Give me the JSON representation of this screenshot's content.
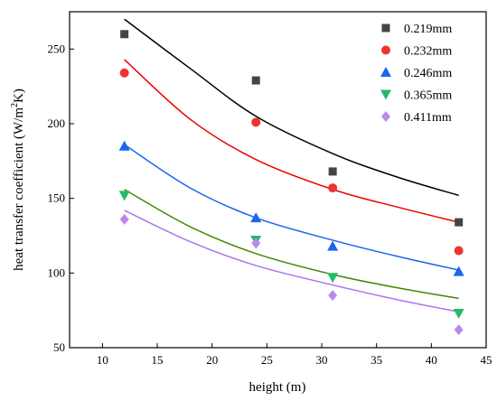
{
  "chart_data": {
    "type": "scatter",
    "xlabel": "height (m)",
    "ylabel_prefix": "heat transfer coefficient (W/m",
    "ylabel_sup": "2",
    "ylabel_suffix": "K)",
    "xlim": [
      7,
      45
    ],
    "ylim": [
      50,
      275
    ],
    "xticks": [
      10,
      15,
      20,
      25,
      30,
      35,
      40,
      45
    ],
    "yticks": [
      50,
      100,
      150,
      200,
      250
    ],
    "legend_position": "top-right",
    "series": [
      {
        "name": "0.219mm",
        "marker": "square",
        "color": "#444444",
        "fit_color": "#000000",
        "x": [
          12,
          24,
          31,
          42.5
        ],
        "y": [
          260,
          229,
          168,
          134
        ],
        "fit": [
          [
            12,
            270
          ],
          [
            18,
            237
          ],
          [
            24,
            205
          ],
          [
            31,
            180
          ],
          [
            37,
            164
          ],
          [
            42.5,
            152
          ]
        ]
      },
      {
        "name": "0.232mm",
        "marker": "circle",
        "color": "#ee3333",
        "fit_color": "#ee0000",
        "x": [
          12,
          24,
          31,
          42.5
        ],
        "y": [
          234,
          201,
          157,
          115
        ],
        "fit": [
          [
            12,
            243
          ],
          [
            18,
            203
          ],
          [
            24,
            176
          ],
          [
            31,
            156
          ],
          [
            37,
            144
          ],
          [
            42.5,
            134
          ]
        ]
      },
      {
        "name": "0.246mm",
        "marker": "triangle-up",
        "color": "#1a66ee",
        "fit_color": "#1a66ee",
        "x": [
          12,
          24,
          31,
          42.5
        ],
        "y": [
          185,
          137,
          118,
          101
        ],
        "fit": [
          [
            12,
            186
          ],
          [
            18,
            157
          ],
          [
            24,
            137
          ],
          [
            31,
            122
          ],
          [
            37,
            111
          ],
          [
            42.5,
            102
          ]
        ]
      },
      {
        "name": "0.365mm",
        "marker": "triangle-down",
        "color": "#22bb66",
        "fit_color": "#448800",
        "x": [
          12,
          24,
          31,
          42.5
        ],
        "y": [
          152,
          122,
          97,
          73
        ],
        "fit": [
          [
            12,
            156
          ],
          [
            18,
            131
          ],
          [
            24,
            113
          ],
          [
            31,
            99
          ],
          [
            37,
            90
          ],
          [
            42.5,
            83
          ]
        ]
      },
      {
        "name": "0.411mm",
        "marker": "diamond",
        "color": "#bb88ee",
        "fit_color": "#aa77ee",
        "x": [
          12,
          24,
          31,
          42.5
        ],
        "y": [
          136,
          120,
          85,
          62
        ],
        "fit": [
          [
            12,
            142
          ],
          [
            18,
            121
          ],
          [
            24,
            105
          ],
          [
            31,
            92
          ],
          [
            37,
            82
          ],
          [
            42.5,
            74
          ]
        ]
      }
    ]
  }
}
